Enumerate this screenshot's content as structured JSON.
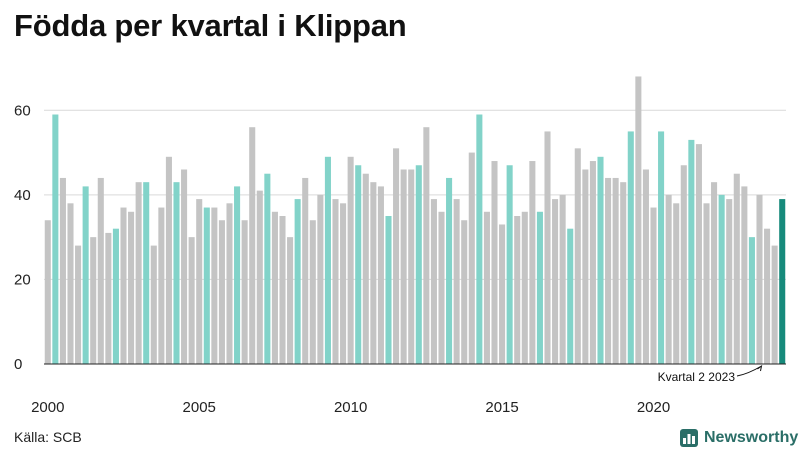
{
  "title": "Födda per kvartal i Klippan",
  "source": "Källa: SCB",
  "brand": "Newsworthy",
  "colors": {
    "gray": "#c4c4c4",
    "teal": "#82d3c9",
    "highlight": "#168a7b",
    "grid": "#d9d9d9",
    "brand": "#2a6e67"
  },
  "chart_data": {
    "type": "bar",
    "ylim": [
      0,
      70
    ],
    "yticks": [
      0,
      20,
      40,
      60
    ],
    "xtick_labels": [
      "2000",
      "2005",
      "2010",
      "2015",
      "2020"
    ],
    "xtick_years": [
      2000,
      2005,
      2010,
      2015,
      2020
    ],
    "start_year": 2000,
    "highlight_quarter": "Q2",
    "annotation": "Kvartal 2 2023",
    "values": [
      34,
      59,
      44,
      38,
      28,
      42,
      30,
      44,
      31,
      32,
      37,
      36,
      43,
      43,
      28,
      37,
      49,
      43,
      46,
      30,
      39,
      37,
      37,
      34,
      38,
      42,
      34,
      56,
      41,
      45,
      36,
      35,
      30,
      39,
      44,
      34,
      40,
      49,
      39,
      38,
      49,
      47,
      45,
      43,
      42,
      35,
      51,
      46,
      46,
      47,
      56,
      39,
      36,
      44,
      39,
      34,
      50,
      59,
      36,
      48,
      33,
      47,
      35,
      36,
      48,
      36,
      55,
      39,
      40,
      32,
      51,
      46,
      48,
      49,
      44,
      44,
      43,
      55,
      68,
      46,
      37,
      55,
      40,
      38,
      47,
      53,
      52,
      38,
      43,
      40,
      39,
      45,
      42,
      30,
      40,
      32,
      28,
      39
    ]
  }
}
